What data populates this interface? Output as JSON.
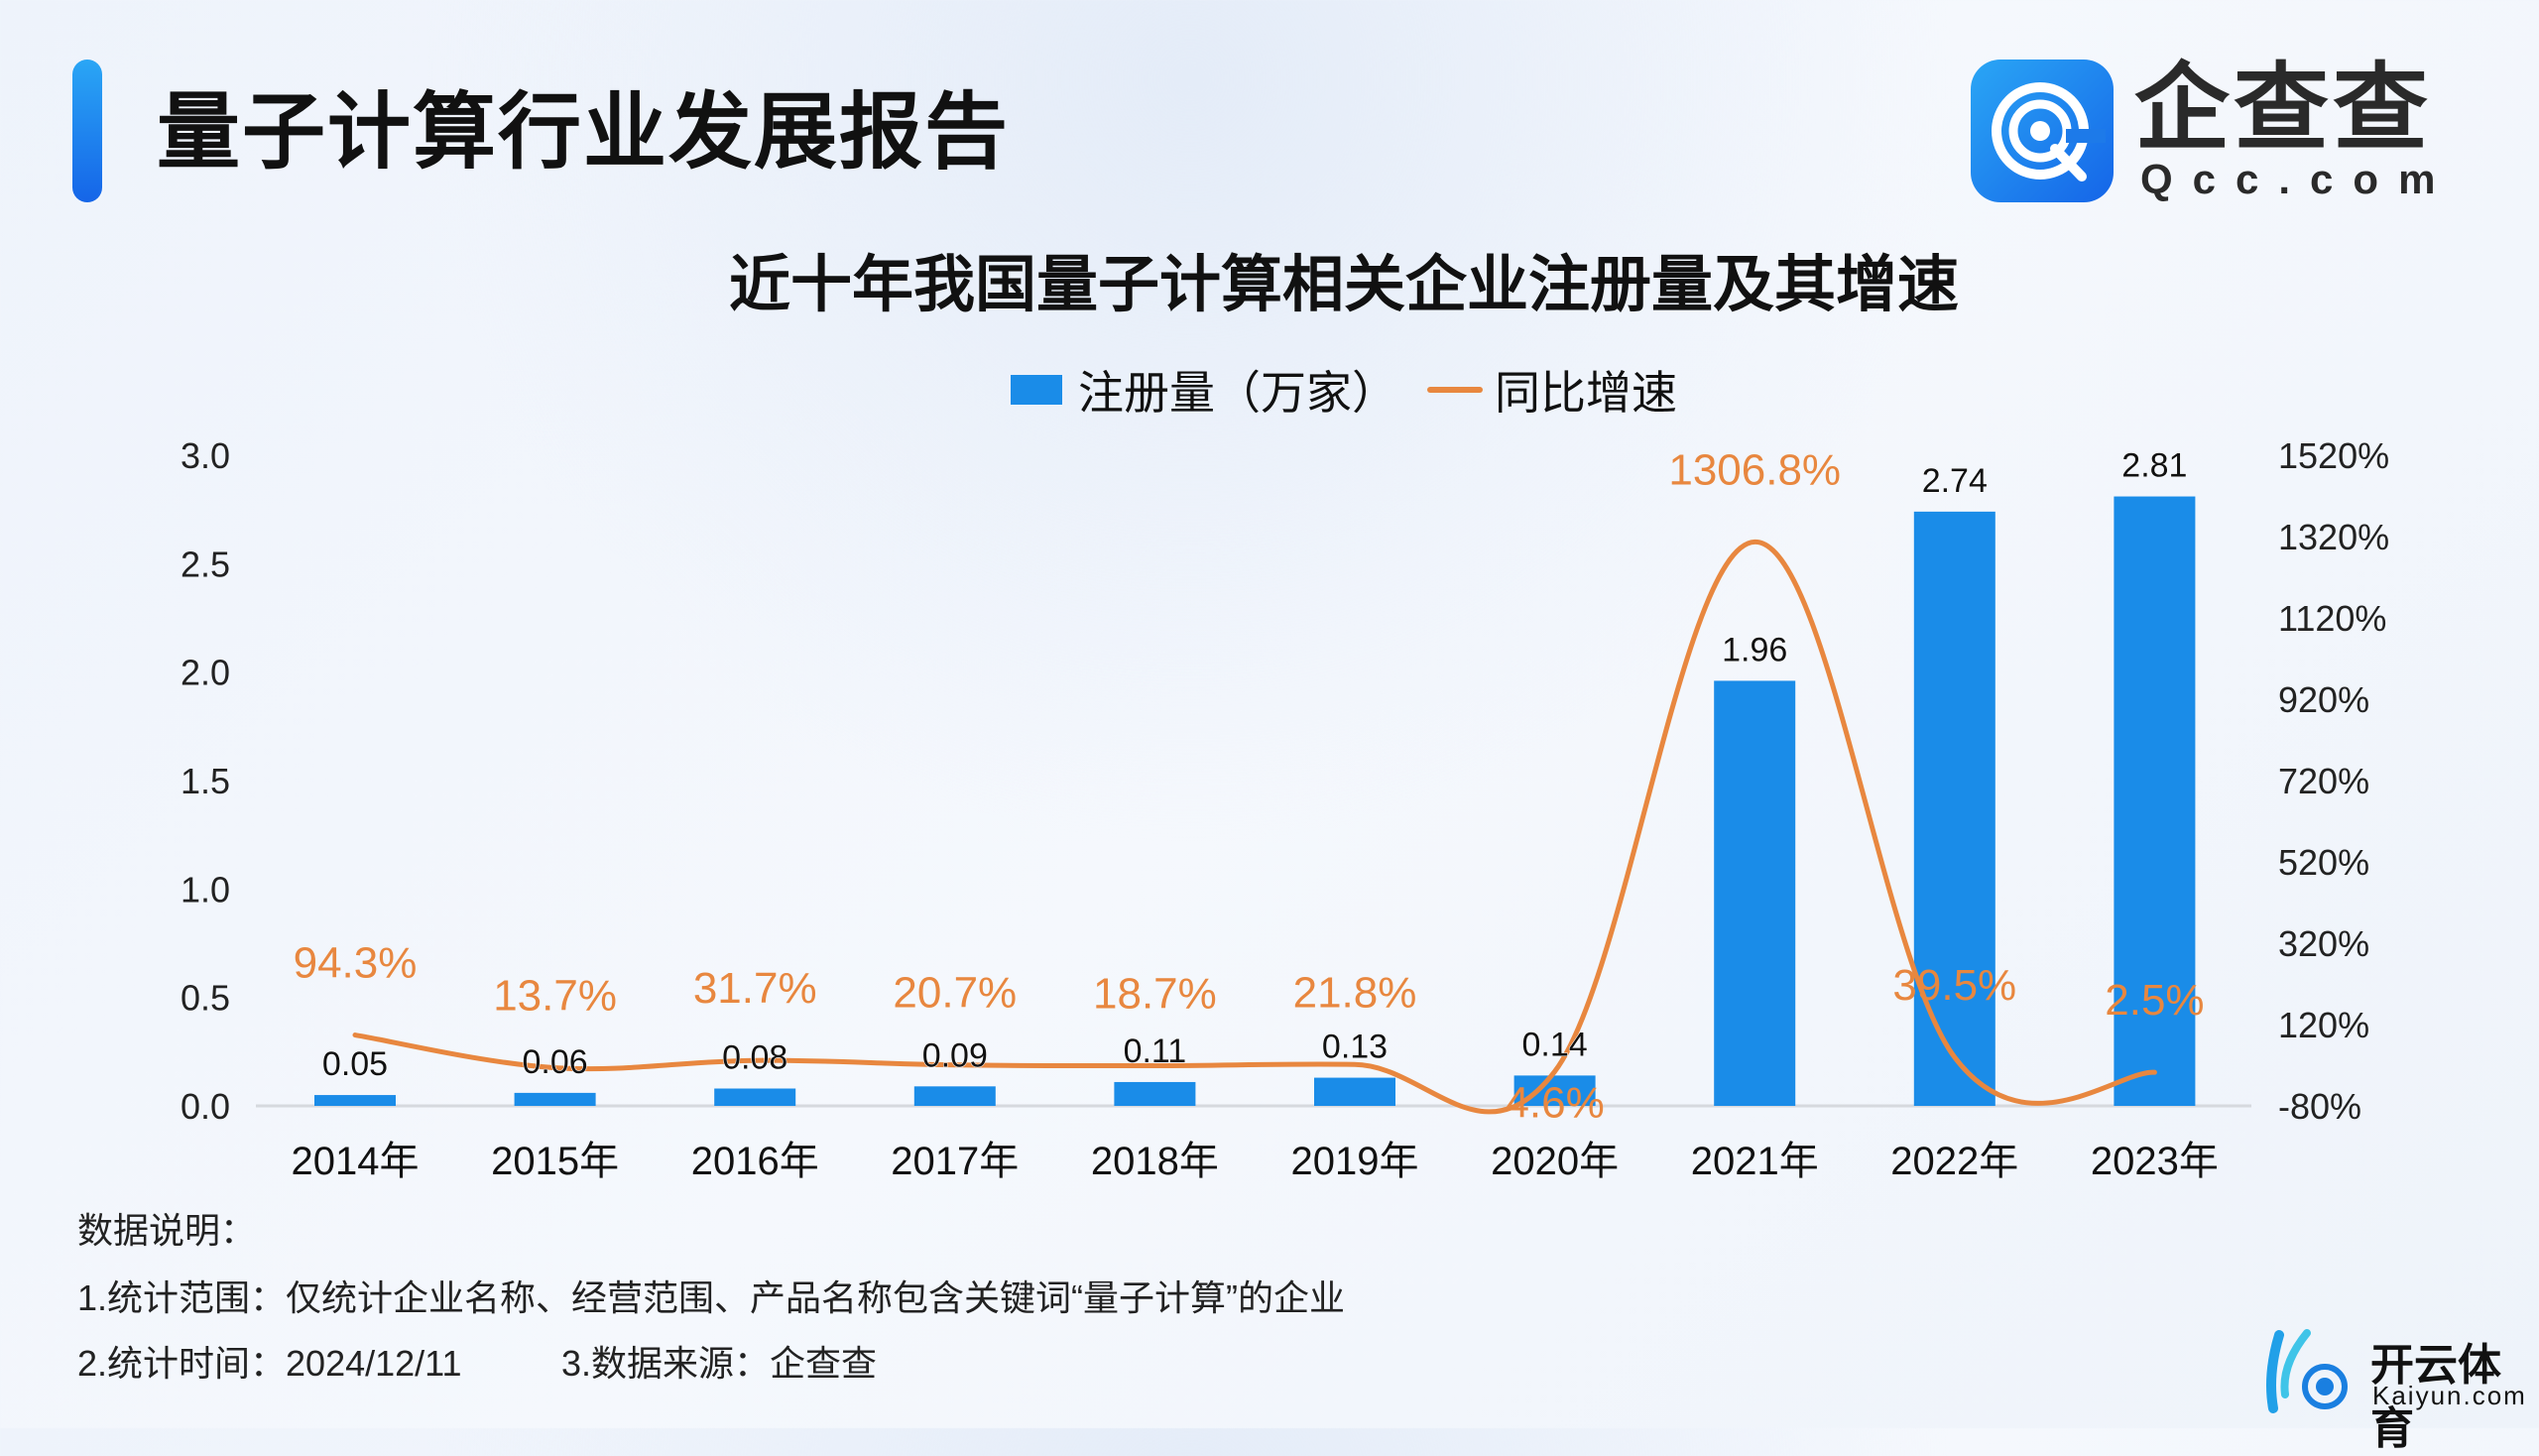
{
  "header": {
    "title": "量子计算行业发展报告",
    "logo_cn": "企查查",
    "logo_en": "Qcc.com"
  },
  "chart_data": {
    "type": "bar+line",
    "title": "近十年我国量子计算相关企业注册量及其增速",
    "categories": [
      "2014年",
      "2015年",
      "2016年",
      "2017年",
      "2018年",
      "2019年",
      "2020年",
      "2021年",
      "2022年",
      "2023年"
    ],
    "series": [
      {
        "name": "注册量（万家）",
        "type": "bar",
        "axis": "left",
        "color": "#1a8ce8",
        "values": [
          0.05,
          0.06,
          0.08,
          0.09,
          0.11,
          0.13,
          0.14,
          1.96,
          2.74,
          2.81
        ],
        "labels": [
          "0.05",
          "0.06",
          "0.08",
          "0.09",
          "0.11",
          "0.13",
          "0.14",
          "1.96",
          "2.74",
          "2.81"
        ]
      },
      {
        "name": "同比增速",
        "type": "line",
        "axis": "right",
        "color": "#e8873f",
        "values": [
          94.3,
          13.7,
          31.7,
          20.7,
          18.7,
          21.8,
          4.6,
          1306.8,
          39.5,
          2.5
        ],
        "labels": [
          "94.3%",
          "13.7%",
          "31.7%",
          "20.7%",
          "18.7%",
          "21.8%",
          "4.6%",
          "1306.8%",
          "39.5%",
          "2.5%"
        ]
      }
    ],
    "left_axis": {
      "ylim": [
        0,
        3.0
      ],
      "ticks": [
        "0.0",
        "0.5",
        "1.0",
        "1.5",
        "2.0",
        "2.5",
        "3.0"
      ]
    },
    "right_axis": {
      "ylim": [
        -80,
        1520
      ],
      "ticks": [
        "-80%",
        "120%",
        "320%",
        "520%",
        "720%",
        "920%",
        "1120%",
        "1320%",
        "1520%"
      ]
    },
    "legend_position": "top-center",
    "grid": false
  },
  "notes": {
    "heading": "数据说明：",
    "line1": "1.统计范围：仅统计企业名称、经营范围、产品名称包含关键词“量子计算”的企业",
    "time": "2.统计时间：2024/12/11",
    "source": "3.数据来源：企查查"
  },
  "watermark": {
    "cn": "开云体育",
    "en": "Kaiyun.com"
  }
}
